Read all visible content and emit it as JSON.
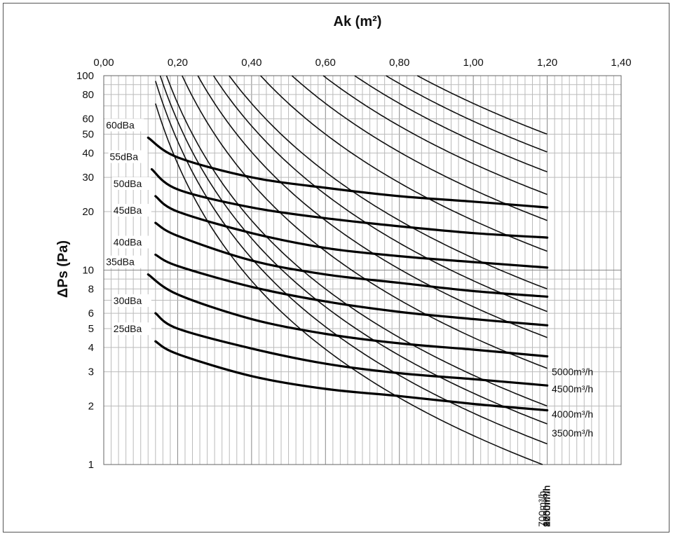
{
  "chart_data": {
    "type": "line",
    "xlabel": "Ak (m²)",
    "ylabel": "ΔPs (Pa)",
    "xlim": [
      0,
      1.4
    ],
    "ylim": [
      1,
      100
    ],
    "y_scale": "log",
    "x_ticks": [
      "0,00",
      "0,20",
      "0,40",
      "0,60",
      "0,80",
      "1,00",
      "1,20",
      "1,40"
    ],
    "x_tick_values": [
      0,
      0.2,
      0.4,
      0.6,
      0.8,
      1.0,
      1.2,
      1.4
    ],
    "y_ticks": [
      "1",
      "2",
      "3",
      "4",
      "5",
      "6",
      "8",
      "10",
      "20",
      "30",
      "40",
      "50",
      "60",
      "80",
      "100"
    ],
    "y_tick_values": [
      1,
      2,
      3,
      4,
      5,
      6,
      8,
      10,
      20,
      30,
      40,
      50,
      60,
      80,
      100
    ],
    "grid": true,
    "flow_series": [
      {
        "name": "700m³/h",
        "k": 1.41
      },
      {
        "name": "800m³/h",
        "k": 1.84
      },
      {
        "name": "900m³/h",
        "k": 2.33
      },
      {
        "name": "1000m³/h",
        "k": 2.88
      },
      {
        "name": "1250m³/h",
        "k": 4.5
      },
      {
        "name": "1500m³/h",
        "k": 6.48
      },
      {
        "name": "1750m³/h",
        "k": 8.82
      },
      {
        "name": "2000m³/h",
        "k": 11.52
      },
      {
        "name": "2500m³/h",
        "k": 18.0
      },
      {
        "name": "3000m³/h",
        "k": 25.92
      },
      {
        "name": "3500m³/h",
        "k": 35.28
      },
      {
        "name": "4000m³/h",
        "k": 46.08
      },
      {
        "name": "4500m³/h",
        "k": 58.32
      },
      {
        "name": "5000m³/h",
        "k": 72.0
      }
    ],
    "noise_series": [
      {
        "name": "60dBa",
        "points": [
          [
            0.12,
            48
          ],
          [
            0.2,
            38
          ],
          [
            0.4,
            30
          ],
          [
            0.6,
            26.5
          ],
          [
            0.8,
            24
          ],
          [
            1.0,
            22.5
          ],
          [
            1.2,
            21
          ]
        ]
      },
      {
        "name": "55dBa",
        "points": [
          [
            0.13,
            33
          ],
          [
            0.2,
            26
          ],
          [
            0.4,
            21
          ],
          [
            0.6,
            18.5
          ],
          [
            0.8,
            16.8
          ],
          [
            1.0,
            15.5
          ],
          [
            1.2,
            14.7
          ]
        ]
      },
      {
        "name": "50dBa",
        "points": [
          [
            0.14,
            24
          ],
          [
            0.2,
            20
          ],
          [
            0.4,
            15.5
          ],
          [
            0.6,
            13
          ],
          [
            0.8,
            11.8
          ],
          [
            1.0,
            11
          ],
          [
            1.2,
            10.3
          ]
        ]
      },
      {
        "name": "45dBa",
        "points": [
          [
            0.14,
            17.5
          ],
          [
            0.2,
            15
          ],
          [
            0.4,
            11.2
          ],
          [
            0.6,
            9.5
          ],
          [
            0.8,
            8.6
          ],
          [
            1.0,
            7.8
          ],
          [
            1.2,
            7.3
          ]
        ]
      },
      {
        "name": "40dBa",
        "points": [
          [
            0.14,
            12
          ],
          [
            0.2,
            10.5
          ],
          [
            0.4,
            8.2
          ],
          [
            0.6,
            6.9
          ],
          [
            0.8,
            6.1
          ],
          [
            1.0,
            5.6
          ],
          [
            1.2,
            5.2
          ]
        ]
      },
      {
        "name": "35dBa",
        "points": [
          [
            0.12,
            9.5
          ],
          [
            0.2,
            7.5
          ],
          [
            0.4,
            5.6
          ],
          [
            0.6,
            4.7
          ],
          [
            0.8,
            4.2
          ],
          [
            1.0,
            3.9
          ],
          [
            1.2,
            3.6
          ]
        ]
      },
      {
        "name": "30dBa",
        "points": [
          [
            0.14,
            6
          ],
          [
            0.2,
            5.0
          ],
          [
            0.4,
            3.95
          ],
          [
            0.6,
            3.3
          ],
          [
            0.8,
            2.95
          ],
          [
            1.0,
            2.75
          ],
          [
            1.2,
            2.55
          ]
        ]
      },
      {
        "name": "25dBa",
        "points": [
          [
            0.14,
            4.3
          ],
          [
            0.2,
            3.7
          ],
          [
            0.4,
            2.85
          ],
          [
            0.6,
            2.45
          ],
          [
            0.8,
            2.25
          ],
          [
            1.0,
            2.05
          ],
          [
            1.2,
            1.9
          ]
        ]
      }
    ]
  }
}
